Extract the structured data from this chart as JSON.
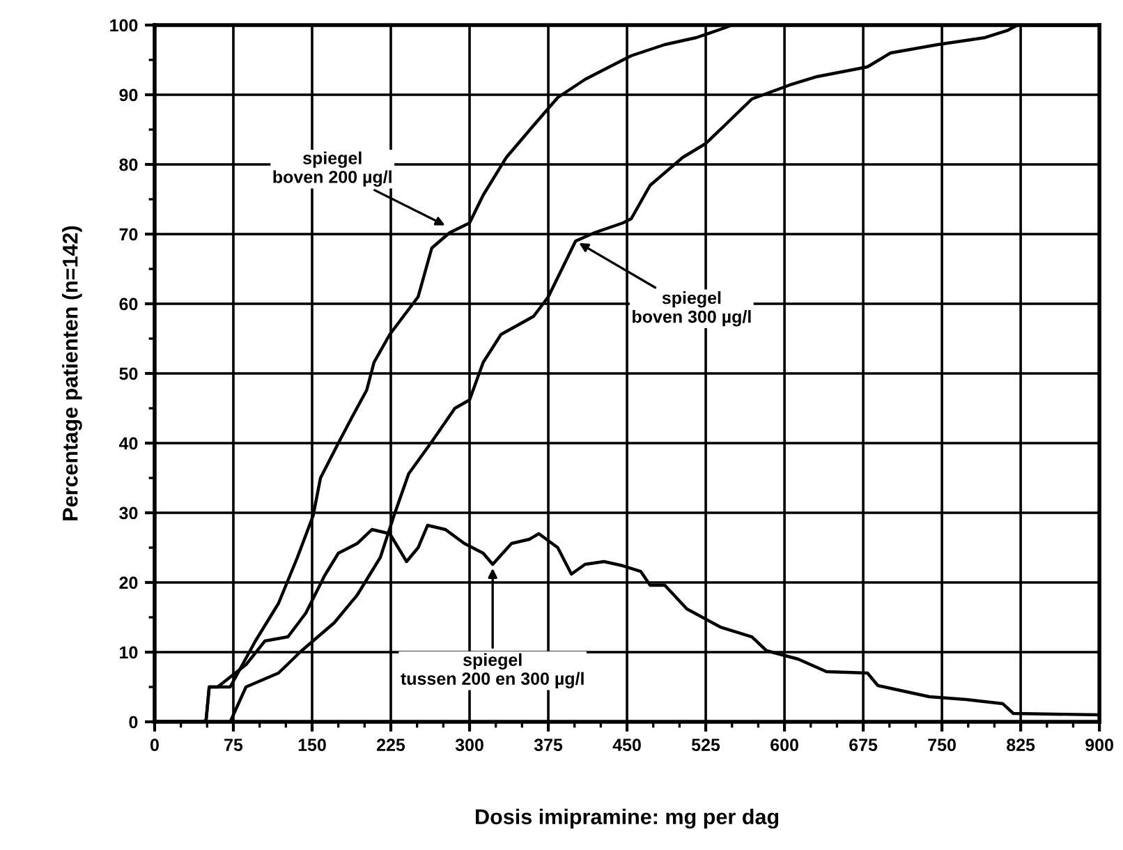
{
  "chart_data": {
    "type": "line",
    "xlabel": "Dosis imipramine: mg per dag",
    "ylabel": "Percentage patienten (n=142)",
    "series": [
      {
        "color": "#000000",
        "x": [
          0,
          45,
          49,
          52,
          60,
          72,
          96,
          118,
          136,
          151,
          158,
          175,
          189,
          202,
          209,
          224,
          251,
          264,
          281,
          300,
          313,
          335,
          361,
          384,
          410,
          428,
          454,
          486,
          516,
          543,
          550,
          900
        ],
        "values": [
          0,
          0,
          0.2,
          5,
          5,
          5,
          11.6,
          17,
          23.6,
          29.6,
          35,
          40,
          44,
          47.6,
          51.6,
          55.6,
          61,
          68,
          70.2,
          71.6,
          75.6,
          81,
          85.6,
          89.6,
          92.2,
          93.6,
          95.6,
          97.2,
          98.2,
          99.6,
          100,
          100
        ]
      },
      {
        "color": "#000000",
        "x": [
          0,
          72,
          87,
          118,
          140,
          171,
          193,
          215,
          228,
          242,
          264,
          286,
          300,
          313,
          330,
          361,
          375,
          401,
          419,
          446,
          454,
          472,
          503,
          525,
          543,
          569,
          605,
          631,
          679,
          701,
          746,
          791,
          812,
          822,
          900
        ],
        "values": [
          0,
          0,
          5,
          7,
          10.2,
          14.2,
          18.2,
          23.6,
          29.6,
          35.6,
          40.2,
          45,
          46.2,
          51.6,
          55.6,
          58.2,
          61,
          69,
          70.2,
          71.6,
          72.2,
          77,
          81,
          83,
          85.6,
          89.4,
          91.4,
          92.6,
          94,
          96,
          97.2,
          98.2,
          99.2,
          100,
          100
        ]
      },
      {
        "color": "#000000",
        "x": [
          0,
          45,
          49,
          52,
          60,
          87,
          105,
          127,
          144,
          162,
          175,
          193,
          207,
          224,
          240,
          251,
          260,
          277,
          295,
          313,
          322,
          340,
          357,
          366,
          384,
          397,
          410,
          428,
          446,
          463,
          472,
          486,
          507,
          539,
          569,
          583,
          613,
          640,
          679,
          689,
          738,
          773,
          808,
          818,
          900
        ],
        "values": [
          0,
          0,
          0.2,
          5,
          5,
          8.2,
          11.6,
          12.2,
          15.6,
          21,
          24.2,
          25.6,
          27.6,
          27,
          23,
          25,
          28.2,
          27.6,
          25.6,
          24.2,
          22.6,
          25.6,
          26.2,
          27,
          25,
          21.2,
          22.6,
          23,
          22.4,
          21.6,
          19.6,
          19.6,
          16.2,
          13.6,
          12.2,
          10.2,
          9,
          7.2,
          7,
          5.2,
          3.6,
          3.2,
          2.6,
          1.2,
          1
        ]
      }
    ],
    "annotations": [
      {
        "text": "spiegel\nboven 200 µg/l",
        "x": 280,
        "y": 71
      },
      {
        "text": "spiegel\nboven 300 µg/l",
        "x": 401,
        "y": 69
      },
      {
        "text": "spiegel\ntussen 200 en 300 µg/l",
        "x": 322,
        "y": 22.6
      }
    ],
    "xlim": [
      0,
      900
    ],
    "ylim": [
      0,
      100
    ],
    "xticks": [
      0,
      {
        "value": 25,
        "label": null
      },
      {
        "value": 50,
        "label": null
      },
      75,
      {
        "value": 100,
        "label": null
      },
      {
        "value": 125,
        "label": null
      },
      150,
      {
        "value": 175,
        "label": null
      },
      {
        "value": 200,
        "label": null
      },
      225,
      {
        "value": 250,
        "label": null
      },
      {
        "value": 275,
        "label": null
      },
      300,
      {
        "value": 325,
        "label": null
      },
      {
        "value": 350,
        "label": null
      },
      375,
      {
        "value": 400,
        "label": null
      },
      {
        "value": 425,
        "label": null
      },
      450,
      {
        "value": 475,
        "label": null
      },
      {
        "value": 500,
        "label": null
      },
      525,
      {
        "value": 550,
        "label": null
      },
      {
        "value": 575,
        "label": null
      },
      600,
      {
        "value": 625,
        "label": null
      },
      {
        "value": 650,
        "label": null
      },
      675,
      {
        "value": 700,
        "label": null
      },
      {
        "value": 725,
        "label": null
      },
      750,
      {
        "value": 775,
        "label": null
      },
      {
        "value": 800,
        "label": null
      },
      825,
      {
        "value": 850,
        "label": null
      },
      {
        "value": 875,
        "label": null
      },
      900
    ],
    "yticks": [
      0,
      {
        "value": 5,
        "label": null
      },
      10,
      {
        "value": 15,
        "label": null
      },
      20,
      {
        "value": 25,
        "label": null
      },
      30,
      {
        "value": 35,
        "label": null
      },
      40,
      {
        "value": 45,
        "label": null
      },
      50,
      {
        "value": 55,
        "label": null
      },
      60,
      {
        "value": 65,
        "label": null
      },
      70,
      {
        "value": 75,
        "label": null
      },
      80,
      {
        "value": 85,
        "label": null
      },
      90,
      {
        "value": 95,
        "label": null
      },
      100
    ],
    "grid": true,
    "legend": false,
    "marker": "none",
    "line_style": "solid"
  }
}
